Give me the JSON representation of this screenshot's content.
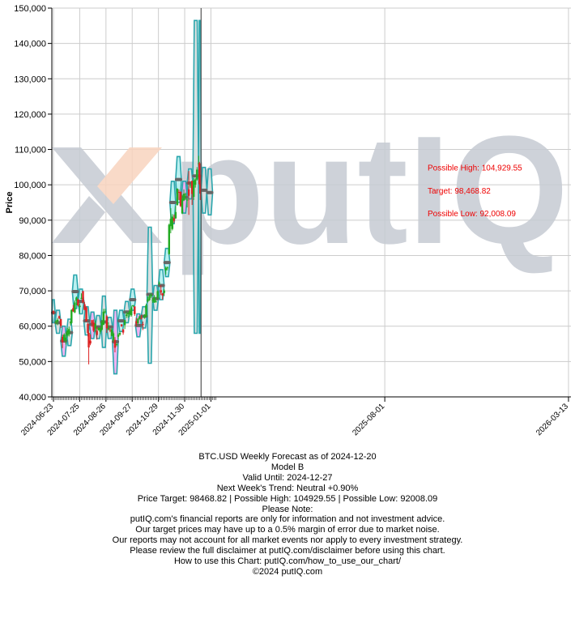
{
  "chart_data": {
    "type": "candlestick-forecast",
    "ylabel": "Price",
    "ylim": [
      40000,
      150000
    ],
    "y_ticks": [
      "40,000",
      "50,000",
      "60,000",
      "70,000",
      "80,000",
      "90,000",
      "100,000",
      "110,000",
      "120,000",
      "130,000",
      "140,000",
      "150,000"
    ],
    "y_tick_values": [
      40000,
      50000,
      60000,
      70000,
      80000,
      90000,
      100000,
      110000,
      120000,
      130000,
      140000,
      150000
    ],
    "x_range": [
      "2024-06-21",
      "2026-03-16"
    ],
    "x_ticks": [
      "2024-06-23",
      "2024-07-25",
      "2024-08-26",
      "2024-09-27",
      "2024-10-29",
      "2024-11-30",
      "2025-01-01",
      "2025-08-01",
      "2026-03-13"
    ],
    "current_date": "2024-12-20",
    "weekly_forecast_bands": [
      {
        "start": "2024-06-21",
        "end": "2024-06-25",
        "low": 61000,
        "high": 67500,
        "target": 63800,
        "trend": "neutral"
      },
      {
        "start": "2024-06-25",
        "end": "2024-07-02",
        "low": 58000,
        "high": 64500,
        "target": 61000,
        "trend": "neutral"
      },
      {
        "start": "2024-07-02",
        "end": "2024-07-09",
        "low": 51500,
        "high": 60000,
        "target": 55800,
        "trend": "down"
      },
      {
        "start": "2024-07-09",
        "end": "2024-07-16",
        "low": 54500,
        "high": 62000,
        "target": 58200,
        "trend": "neutral"
      },
      {
        "start": "2024-07-16",
        "end": "2024-07-23",
        "low": 65000,
        "high": 74500,
        "target": 69800,
        "trend": "up"
      },
      {
        "start": "2024-07-23",
        "end": "2024-07-30",
        "low": 63500,
        "high": 70500,
        "target": 67000,
        "trend": "up"
      },
      {
        "start": "2024-07-30",
        "end": "2024-08-06",
        "low": 57500,
        "high": 65500,
        "target": 61500,
        "trend": "neutral"
      },
      {
        "start": "2024-08-06",
        "end": "2024-08-13",
        "low": 56500,
        "high": 64000,
        "target": 60500,
        "trend": "down"
      },
      {
        "start": "2024-08-13",
        "end": "2024-08-20",
        "low": 56500,
        "high": 63000,
        "target": 59800,
        "trend": "neutral"
      },
      {
        "start": "2024-08-20",
        "end": "2024-08-27",
        "low": 54000,
        "high": 68500,
        "target": 61200,
        "trend": "neutral"
      },
      {
        "start": "2024-08-27",
        "end": "2024-09-03",
        "low": 56500,
        "high": 62500,
        "target": 59800,
        "trend": "neutral"
      },
      {
        "start": "2024-09-03",
        "end": "2024-09-10",
        "low": 46500,
        "high": 64500,
        "target": 55600,
        "trend": "down"
      },
      {
        "start": "2024-09-10",
        "end": "2024-09-17",
        "low": 58500,
        "high": 64500,
        "target": 61500,
        "trend": "up"
      },
      {
        "start": "2024-09-17",
        "end": "2024-09-24",
        "low": 61000,
        "high": 67000,
        "target": 64000,
        "trend": "neutral"
      },
      {
        "start": "2024-09-24",
        "end": "2024-10-01",
        "low": 64500,
        "high": 70500,
        "target": 67500,
        "trend": "up"
      },
      {
        "start": "2024-10-01",
        "end": "2024-10-08",
        "low": 57000,
        "high": 63500,
        "target": 60200,
        "trend": "down"
      },
      {
        "start": "2024-10-08",
        "end": "2024-10-15",
        "low": 59500,
        "high": 65500,
        "target": 62800,
        "trend": "neutral"
      },
      {
        "start": "2024-10-15",
        "end": "2024-10-22",
        "low": 49500,
        "high": 88000,
        "target": 69000,
        "trend": "neutral"
      },
      {
        "start": "2024-10-22",
        "end": "2024-10-29",
        "low": 64500,
        "high": 71500,
        "target": 67800,
        "trend": "neutral"
      },
      {
        "start": "2024-10-29",
        "end": "2024-11-05",
        "low": 67500,
        "high": 76000,
        "target": 71500,
        "trend": "up"
      },
      {
        "start": "2024-11-05",
        "end": "2024-11-12",
        "low": 74000,
        "high": 82000,
        "target": 78000,
        "trend": "up"
      },
      {
        "start": "2024-11-12",
        "end": "2024-11-19",
        "low": 89000,
        "high": 101000,
        "target": 95000,
        "trend": "up"
      },
      {
        "start": "2024-11-19",
        "end": "2024-11-26",
        "low": 95000,
        "high": 108000,
        "target": 101500,
        "trend": "up"
      },
      {
        "start": "2024-11-26",
        "end": "2024-12-03",
        "low": 92000,
        "high": 101000,
        "target": 96500,
        "trend": "down"
      },
      {
        "start": "2024-12-03",
        "end": "2024-12-10",
        "low": 96000,
        "high": 104500,
        "target": 100500,
        "trend": "neutral"
      },
      {
        "start": "2024-12-10",
        "end": "2024-12-17",
        "low": 58000,
        "high": 146500,
        "target": 102500,
        "trend": "neutral"
      },
      {
        "start": "2024-12-17",
        "end": "2024-12-20",
        "low": 58000,
        "high": 146500,
        "target": 102500,
        "trend": "neutral"
      },
      {
        "start": "2024-12-20",
        "end": "2024-12-27",
        "low": 92008.09,
        "high": 104929.55,
        "target": 98468.82,
        "trend": "neutral"
      },
      {
        "start": "2024-12-27",
        "end": "2025-01-03",
        "low": 91500,
        "high": 104500,
        "target": 97800,
        "trend": "neutral"
      }
    ],
    "candles": [
      [
        "2024-06-23",
        64200,
        64500,
        63300,
        63800
      ],
      [
        "2024-06-26",
        61000,
        61800,
        60500,
        61400
      ],
      [
        "2024-06-28",
        61400,
        62300,
        60300,
        61800
      ],
      [
        "2024-06-30",
        62800,
        63000,
        62000,
        62300
      ],
      [
        "2024-07-02",
        62000,
        62100,
        59500,
        60100
      ],
      [
        "2024-07-04",
        57000,
        57600,
        53800,
        55500
      ],
      [
        "2024-07-06",
        56000,
        58000,
        55800,
        57600
      ],
      [
        "2024-07-08",
        55900,
        58200,
        54800,
        56800
      ],
      [
        "2024-07-10",
        57300,
        59500,
        56800,
        58800
      ],
      [
        "2024-07-12",
        57700,
        59900,
        57100,
        59200
      ],
      [
        "2024-07-14",
        60800,
        61500,
        60200,
        61300
      ],
      [
        "2024-07-15",
        60900,
        64800,
        60700,
        64600
      ],
      [
        "2024-07-17",
        65100,
        66000,
        64000,
        64200
      ],
      [
        "2024-07-19",
        63900,
        67300,
        63700,
        66700
      ],
      [
        "2024-07-21",
        67200,
        68400,
        65900,
        68100
      ],
      [
        "2024-07-23",
        67500,
        67800,
        65600,
        65900
      ],
      [
        "2024-07-25",
        65400,
        66500,
        63500,
        65800
      ],
      [
        "2024-07-27",
        67900,
        69300,
        67600,
        68000
      ],
      [
        "2024-07-29",
        69900,
        70000,
        66300,
        66800
      ],
      [
        "2024-07-31",
        66200,
        66800,
        64500,
        64600
      ],
      [
        "2024-08-02",
        65300,
        65600,
        61300,
        61400
      ],
      [
        "2024-08-04",
        60600,
        61000,
        57100,
        58100
      ],
      [
        "2024-08-05",
        58100,
        58300,
        49200,
        54000
      ],
      [
        "2024-08-07",
        55900,
        57700,
        54600,
        55100
      ],
      [
        "2024-08-09",
        61700,
        61800,
        59800,
        60900
      ],
      [
        "2024-08-11",
        61000,
        61900,
        58300,
        58700
      ],
      [
        "2024-08-13",
        59300,
        61600,
        58400,
        60600
      ],
      [
        "2024-08-15",
        58700,
        59800,
        56200,
        57500
      ],
      [
        "2024-08-17",
        58900,
        59700,
        58800,
        59500
      ],
      [
        "2024-08-19",
        58400,
        59600,
        57800,
        59500
      ],
      [
        "2024-08-21",
        59000,
        61800,
        58700,
        61200
      ],
      [
        "2024-08-23",
        60400,
        64900,
        60300,
        64100
      ],
      [
        "2024-08-25",
        64200,
        64900,
        63600,
        64200
      ],
      [
        "2024-08-27",
        62800,
        63200,
        58100,
        59400
      ],
      [
        "2024-08-29",
        59100,
        61100,
        58800,
        59400
      ],
      [
        "2024-08-31",
        59100,
        59400,
        58300,
        58900
      ],
      [
        "2024-09-02",
        57300,
        59400,
        57200,
        59100
      ],
      [
        "2024-09-04",
        56100,
        58500,
        55600,
        58000
      ],
      [
        "2024-09-06",
        56100,
        56900,
        52600,
        53900
      ],
      [
        "2024-09-08",
        54800,
        55300,
        54300,
        54900
      ],
      [
        "2024-09-10",
        57000,
        58000,
        56400,
        57600
      ],
      [
        "2024-09-12",
        57600,
        58500,
        57300,
        58100
      ],
      [
        "2024-09-14",
        60500,
        60600,
        59800,
        60000
      ],
      [
        "2024-09-16",
        59100,
        59200,
        57600,
        58200
      ],
      [
        "2024-09-18",
        60300,
        61700,
        59200,
        61700
      ],
      [
        "2024-09-20",
        62900,
        64100,
        62300,
        63300
      ],
      [
        "2024-09-22",
        63500,
        64000,
        62400,
        63600
      ],
      [
        "2024-09-24",
        63300,
        64800,
        62700,
        64300
      ],
      [
        "2024-09-26",
        63100,
        65800,
        62700,
        65300
      ],
      [
        "2024-09-28",
        65800,
        66000,
        65400,
        65900
      ],
      [
        "2024-09-30",
        65600,
        65600,
        62900,
        63400
      ],
      [
        "2024-10-02",
        61400,
        62400,
        60000,
        60700
      ],
      [
        "2024-10-04",
        60800,
        62300,
        60500,
        62100
      ],
      [
        "2024-10-06",
        62100,
        63000,
        61900,
        62800
      ],
      [
        "2024-10-08",
        62300,
        63200,
        61900,
        62200
      ],
      [
        "2024-10-10",
        60600,
        61300,
        58900,
        60400
      ],
      [
        "2024-10-12",
        62400,
        63400,
        62100,
        63100
      ],
      [
        "2024-10-14",
        62800,
        66400,
        62500,
        65900
      ],
      [
        "2024-10-16",
        67000,
        68400,
        66700,
        67600
      ],
      [
        "2024-10-18",
        67400,
        68900,
        67200,
        68400
      ],
      [
        "2024-10-20",
        68400,
        69400,
        68000,
        69000
      ],
      [
        "2024-10-22",
        67400,
        67900,
        66600,
        67400
      ],
      [
        "2024-10-24",
        66700,
        68800,
        66600,
        68200
      ],
      [
        "2024-10-26",
        67000,
        67400,
        66700,
        67000
      ],
      [
        "2024-10-28",
        67900,
        70100,
        67500,
        69900
      ],
      [
        "2024-10-30",
        72300,
        72700,
        71500,
        72300
      ],
      [
        "2024-11-01",
        70200,
        71600,
        68800,
        69500
      ],
      [
        "2024-11-03",
        69300,
        69400,
        67500,
        68700
      ],
      [
        "2024-11-05",
        69400,
        70500,
        68500,
        70100
      ],
      [
        "2024-11-07",
        75800,
        76900,
        74600,
        76500
      ],
      [
        "2024-11-09",
        76600,
        76900,
        75800,
        76600
      ],
      [
        "2024-11-11",
        80400,
        89000,
        80200,
        88700
      ],
      [
        "2024-11-13",
        88300,
        93400,
        86300,
        90400
      ],
      [
        "2024-11-15",
        87500,
        91700,
        87100,
        91000
      ],
      [
        "2024-11-17",
        90600,
        91600,
        89200,
        89800
      ],
      [
        "2024-11-19",
        90500,
        94000,
        90400,
        92300
      ],
      [
        "2024-11-21",
        94300,
        99000,
        94100,
        98900
      ],
      [
        "2024-11-23",
        98000,
        98700,
        95700,
        97800
      ],
      [
        "2024-11-25",
        98000,
        98200,
        93700,
        94000
      ],
      [
        "2024-11-27",
        91900,
        97200,
        91700,
        96000
      ],
      [
        "2024-11-29",
        95600,
        98700,
        95400,
        97500
      ],
      [
        "2024-12-01",
        97200,
        97800,
        95700,
        97400
      ],
      [
        "2024-12-03",
        95800,
        96200,
        93600,
        95800
      ],
      [
        "2024-12-05",
        98700,
        103900,
        91500,
        96900
      ],
      [
        "2024-12-07",
        99900,
        100500,
        99100,
        99900
      ],
      [
        "2024-12-09",
        101100,
        101200,
        94300,
        97400
      ],
      [
        "2024-12-11",
        96600,
        101900,
        95700,
        101200
      ],
      [
        "2024-12-13",
        100000,
        101900,
        99200,
        101500
      ],
      [
        "2024-12-15",
        101500,
        105000,
        101200,
        104300
      ],
      [
        "2024-12-17",
        106000,
        108200,
        105300,
        106100
      ],
      [
        "2024-12-18",
        106100,
        106500,
        99900,
        100200
      ],
      [
        "2024-12-19",
        100200,
        102800,
        95700,
        97500
      ]
    ],
    "annotations": {
      "possible_high": "Possible High: 104,929.55",
      "target": "Target: 98,468.82",
      "possible_low": "Possible Low: 92,008.09"
    },
    "annotation_values": {
      "possible_high": 104929.55,
      "target": 98468.82,
      "possible_low": 92008.09
    },
    "colors": {
      "up_band_fill": "#b2eeee",
      "down_band_fill": "#f0a8f0",
      "neutral_band_fill": "#d6dddd",
      "band_stroke": "#2aa6ad",
      "target_line": "#666666",
      "candle_up": "#22aa22",
      "candle_down": "#dd2222",
      "annotation_text": "#ee0000",
      "grid": "#cccccc"
    },
    "grid": true
  },
  "watermark": {
    "text": "putIQ",
    "colors": {
      "main": "#c6cbd3",
      "accent": "#f9d4bf"
    }
  },
  "caption": {
    "title": "BTC.USD Weekly Forecast as of 2024-12-20",
    "model": "Model B",
    "valid_until": "Valid Until: 2024-12-27",
    "trend": "Next Week's Trend: Neutral +0.90%",
    "prices": "Price Target: 98468.82 | Possible High: 104929.55 | Possible Low: 92008.09",
    "note_heading": "Please Note:",
    "disclaimer_1": "putIQ.com's financial reports are only for information and not investment advice.",
    "disclaimer_2": "Our target prices may have up to a 0.5% margin of error due to market noise.",
    "disclaimer_3": "Our reports may not account for all market events nor apply to every investment strategy.",
    "disclaimer_4": "Please review the full disclaimer at putIQ.com/disclaimer before using this chart.",
    "howto": "How to use this Chart: putIQ.com/how_to_use_our_chart/",
    "copyright": "©2024 putIQ.com"
  }
}
